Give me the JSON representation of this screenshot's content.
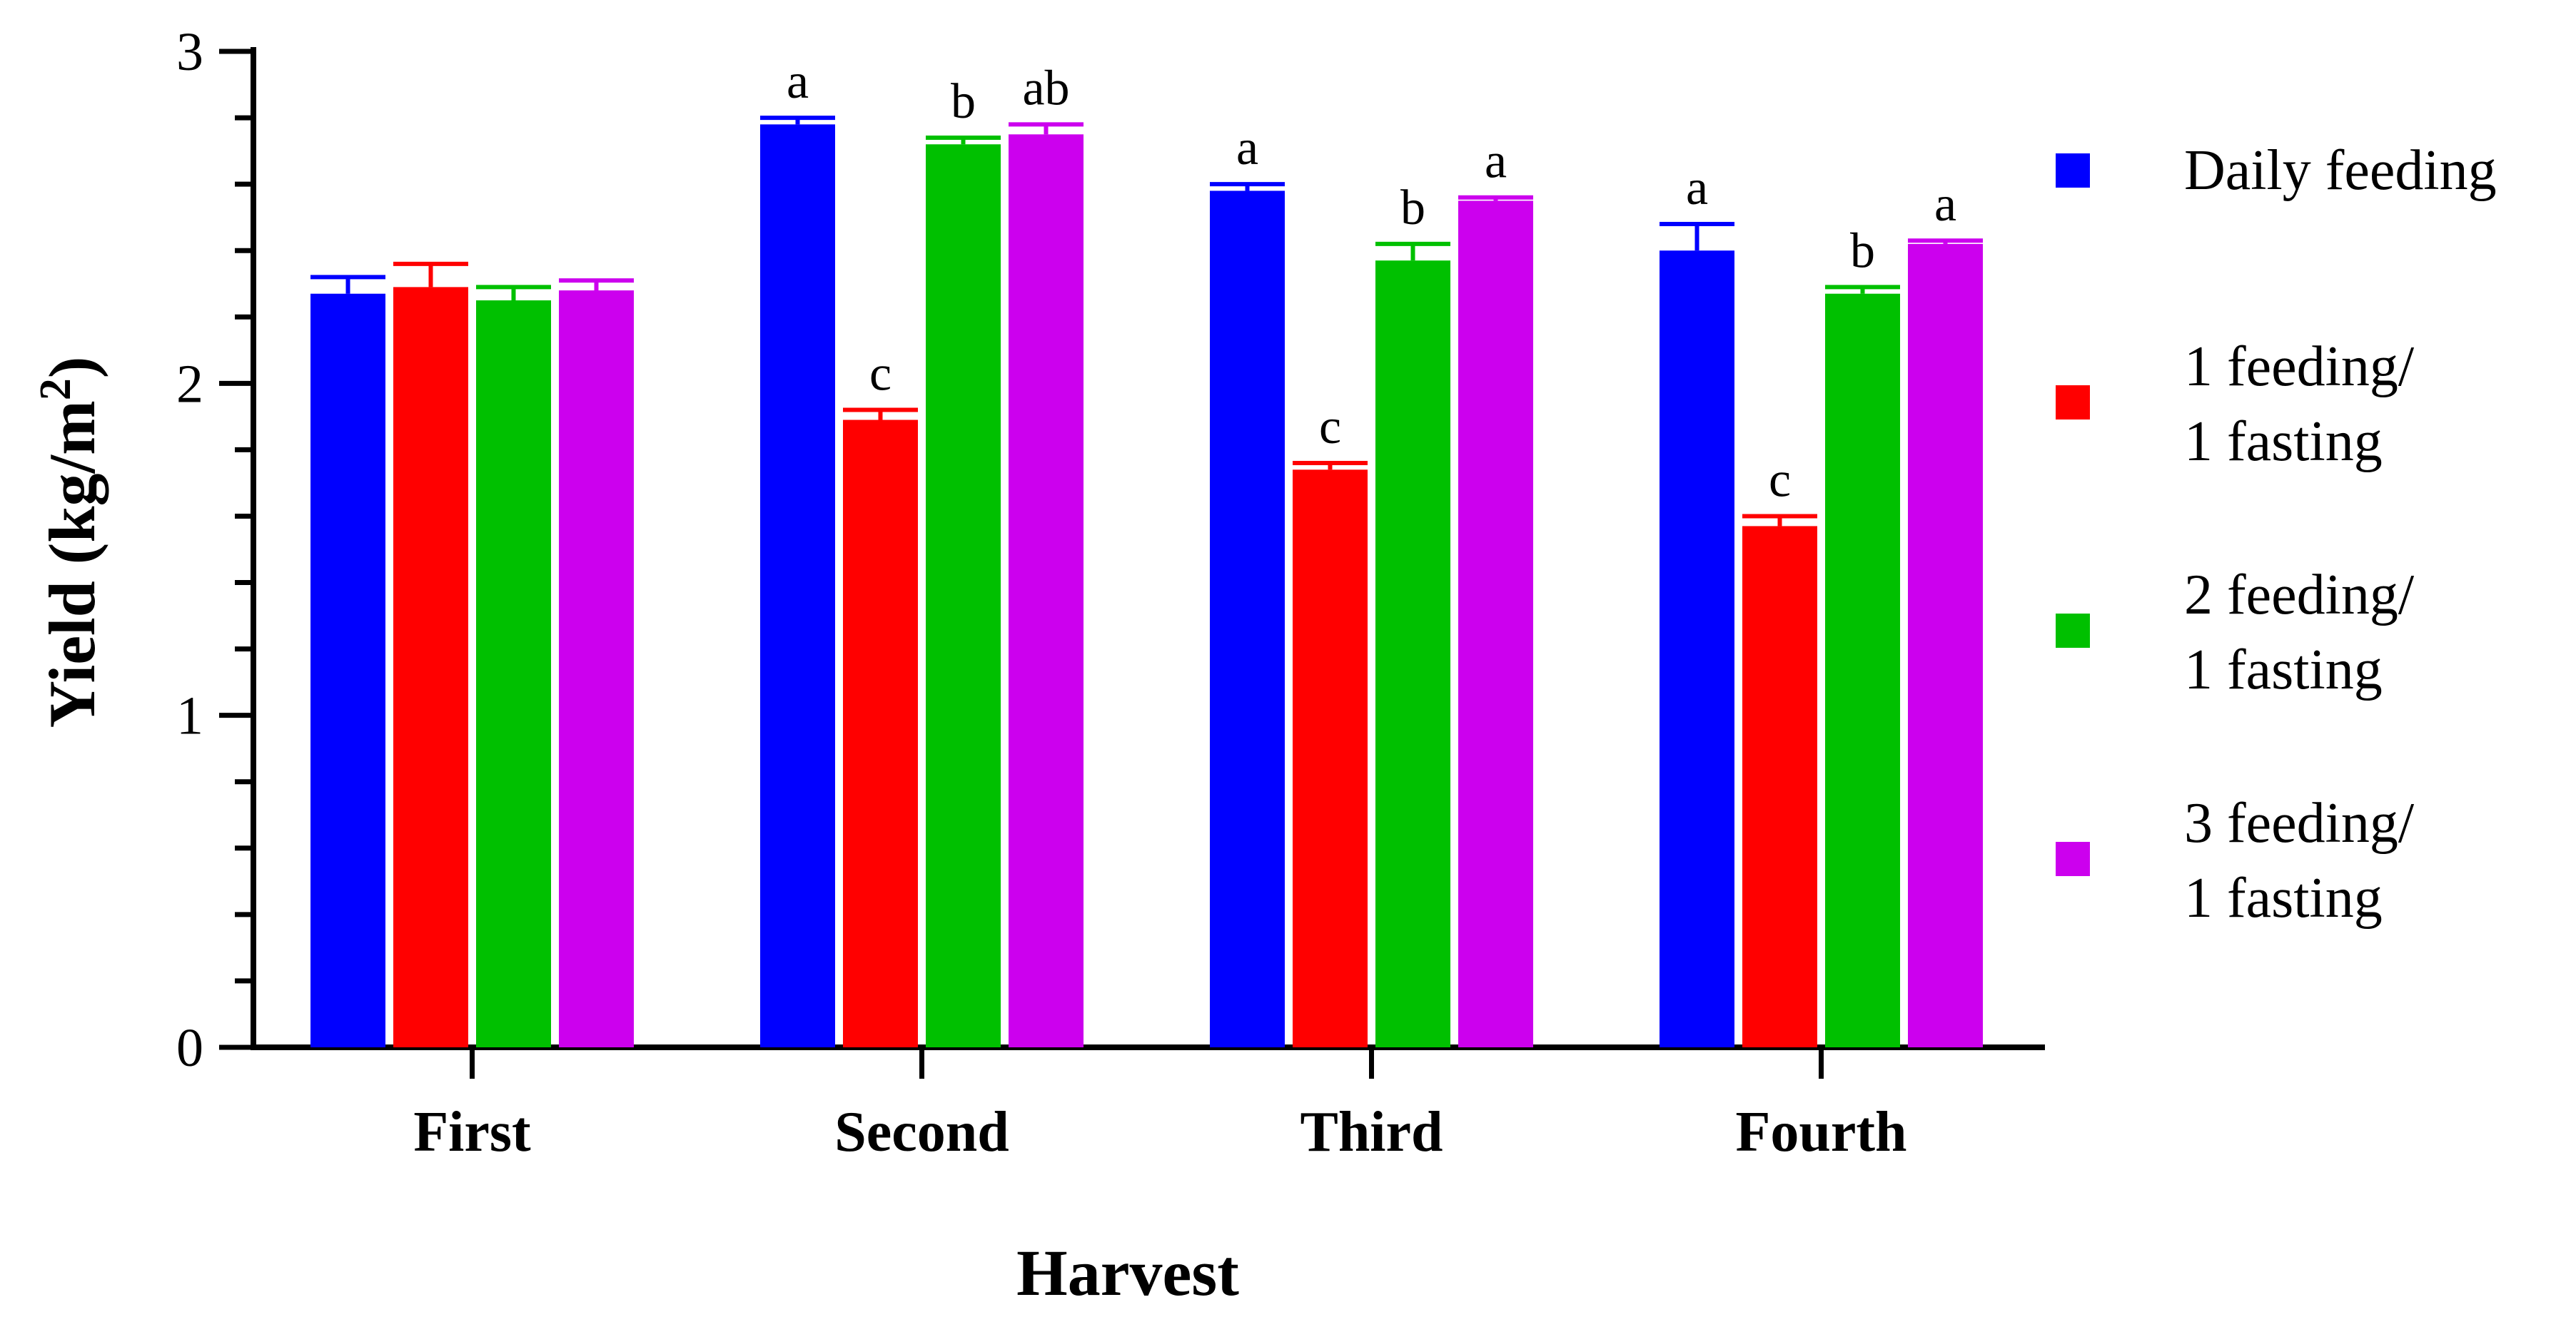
{
  "chart_data": {
    "type": "bar",
    "xlabel": "Harvest",
    "ylabel": "Yield (kg/m",
    "ylabel_superscript": "2",
    "ylabel_suffix": ")",
    "ylim": [
      0,
      3
    ],
    "yticks": [
      "0",
      "1",
      "2",
      "3"
    ],
    "categories": [
      "First",
      "Second",
      "Third",
      "Fourth"
    ],
    "series": [
      {
        "name": "Daily feeding",
        "legend_lines": [
          "Daily feeding"
        ],
        "color": "#0000ff",
        "values": [
          2.27,
          2.78,
          2.58,
          2.4
        ],
        "errors": [
          0.05,
          0.02,
          0.02,
          0.08
        ],
        "letters": [
          "",
          "a",
          "a",
          "a"
        ]
      },
      {
        "name": "1 feeding/ 1 fasting",
        "legend_lines": [
          "1 feeding/",
          "1 fasting"
        ],
        "color": "#ff0000",
        "values": [
          2.29,
          1.89,
          1.74,
          1.57
        ],
        "errors": [
          0.07,
          0.03,
          0.02,
          0.03
        ],
        "letters": [
          "",
          "c",
          "c",
          "c"
        ]
      },
      {
        "name": "2 feeding/ 1 fasting",
        "legend_lines": [
          "2 feeding/",
          "1 fasting"
        ],
        "color": "#00c000",
        "values": [
          2.25,
          2.72,
          2.37,
          2.27
        ],
        "errors": [
          0.04,
          0.02,
          0.05,
          0.02
        ],
        "letters": [
          "",
          "b",
          "b",
          "b"
        ]
      },
      {
        "name": "3 feeding/ 1 fasting",
        "legend_lines": [
          "3 feeding/",
          "1 fasting"
        ],
        "color": "#cc00ee",
        "values": [
          2.28,
          2.75,
          2.55,
          2.42
        ],
        "errors": [
          0.03,
          0.03,
          0.01,
          0.01
        ],
        "letters": [
          "",
          "ab",
          "a",
          "a"
        ]
      }
    ],
    "error_bars": true,
    "grid": false,
    "legend_position": "right"
  }
}
